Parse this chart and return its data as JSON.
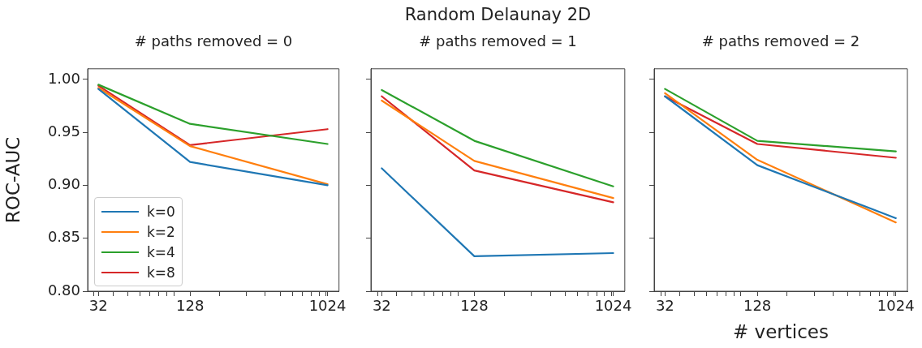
{
  "chart_data": [
    {
      "type": "line",
      "subtitle": "# paths removed = 0",
      "ylabel": "ROC-AUC",
      "x": [
        32,
        128,
        1024
      ],
      "log": "x",
      "legend": "bottom left",
      "grid": false,
      "xlim": [
        27.2,
        1218
      ],
      "xticks": [
        {
          "value": 30,
          "label": null
        },
        {
          "value": 32,
          "label": "32"
        },
        {
          "value": 40,
          "label": null
        },
        {
          "value": 50,
          "label": null
        },
        {
          "value": 60,
          "label": null
        },
        {
          "value": 70,
          "label": null
        },
        {
          "value": 80,
          "label": null
        },
        {
          "value": 90,
          "label": null
        },
        {
          "value": 100,
          "label": null
        },
        {
          "value": 128,
          "label": "128"
        },
        {
          "value": 200,
          "label": null
        },
        {
          "value": 300,
          "label": null
        },
        {
          "value": 400,
          "label": null
        },
        {
          "value": 500,
          "label": null
        },
        {
          "value": 600,
          "label": null
        },
        {
          "value": 700,
          "label": null
        },
        {
          "value": 800,
          "label": null
        },
        {
          "value": 900,
          "label": null
        },
        {
          "value": 1000,
          "label": null
        },
        {
          "value": 1024,
          "label": "1024"
        }
      ],
      "ylim": [
        0.8,
        1.01
      ],
      "yticks": [
        {
          "value": 0.8,
          "label": "0.80"
        },
        {
          "value": 0.85,
          "label": "0.85"
        },
        {
          "value": 0.9,
          "label": "0.90"
        },
        {
          "value": 0.95,
          "label": "0.95"
        },
        {
          "value": 1,
          "label": "1.00"
        }
      ],
      "series": [
        {
          "name": "k=0",
          "color": "#1f77b4",
          "values": [
            0.991,
            0.922,
            0.9
          ]
        },
        {
          "name": "k=2",
          "color": "#ff7f0e",
          "values": [
            0.992,
            0.937,
            0.901
          ]
        },
        {
          "name": "k=4",
          "color": "#2ca02c",
          "values": [
            0.995,
            0.958,
            0.939
          ]
        },
        {
          "name": "k=8",
          "color": "#d62728",
          "values": [
            0.994,
            0.938,
            0.953
          ]
        }
      ]
    },
    {
      "type": "line",
      "title": "Random Delaunay 2D",
      "subtitle": "# paths removed = 1",
      "x": [
        32,
        128,
        1024
      ],
      "log": "x",
      "grid": false,
      "tick_labels": "x",
      "xlim": [
        27.2,
        1218
      ],
      "xticks": [
        {
          "value": 30,
          "label": null
        },
        {
          "value": 32,
          "label": "32"
        },
        {
          "value": 40,
          "label": null
        },
        {
          "value": 50,
          "label": null
        },
        {
          "value": 60,
          "label": null
        },
        {
          "value": 70,
          "label": null
        },
        {
          "value": 80,
          "label": null
        },
        {
          "value": 90,
          "label": null
        },
        {
          "value": 100,
          "label": null
        },
        {
          "value": 128,
          "label": "128"
        },
        {
          "value": 200,
          "label": null
        },
        {
          "value": 300,
          "label": null
        },
        {
          "value": 400,
          "label": null
        },
        {
          "value": 500,
          "label": null
        },
        {
          "value": 600,
          "label": null
        },
        {
          "value": 700,
          "label": null
        },
        {
          "value": 800,
          "label": null
        },
        {
          "value": 900,
          "label": null
        },
        {
          "value": 1000,
          "label": null
        },
        {
          "value": 1024,
          "label": "1024"
        }
      ],
      "ylim": [
        0.8,
        1.01
      ],
      "yticks": [
        {
          "value": 0.8,
          "label": null
        },
        {
          "value": 0.85,
          "label": null
        },
        {
          "value": 0.9,
          "label": null
        },
        {
          "value": 0.95,
          "label": null
        },
        {
          "value": 1,
          "label": null
        }
      ],
      "series": [
        {
          "color": "#1f77b4",
          "values": [
            0.916,
            0.833,
            0.836
          ]
        },
        {
          "color": "#ff7f0e",
          "values": [
            0.98,
            0.923,
            0.888
          ]
        },
        {
          "color": "#2ca02c",
          "values": [
            0.99,
            0.942,
            0.899
          ]
        },
        {
          "color": "#d62728",
          "values": [
            0.984,
            0.914,
            0.884
          ]
        }
      ]
    },
    {
      "type": "line",
      "subtitle": "# paths removed = 2",
      "xlabel": "# vertices",
      "x": [
        32,
        128,
        1024
      ],
      "log": "x",
      "grid": false,
      "tick_labels": "x",
      "xlim": [
        27.2,
        1218
      ],
      "xticks": [
        {
          "value": 30,
          "label": null
        },
        {
          "value": 32,
          "label": "32"
        },
        {
          "value": 40,
          "label": null
        },
        {
          "value": 50,
          "label": null
        },
        {
          "value": 60,
          "label": null
        },
        {
          "value": 70,
          "label": null
        },
        {
          "value": 80,
          "label": null
        },
        {
          "value": 90,
          "label": null
        },
        {
          "value": 100,
          "label": null
        },
        {
          "value": 128,
          "label": "128"
        },
        {
          "value": 200,
          "label": null
        },
        {
          "value": 300,
          "label": null
        },
        {
          "value": 400,
          "label": null
        },
        {
          "value": 500,
          "label": null
        },
        {
          "value": 600,
          "label": null
        },
        {
          "value": 700,
          "label": null
        },
        {
          "value": 800,
          "label": null
        },
        {
          "value": 900,
          "label": null
        },
        {
          "value": 1000,
          "label": null
        },
        {
          "value": 1024,
          "label": "1024"
        }
      ],
      "ylim": [
        0.8,
        1.01
      ],
      "yticks": [
        {
          "value": 0.8,
          "label": null
        },
        {
          "value": 0.85,
          "label": null
        },
        {
          "value": 0.9,
          "label": null
        },
        {
          "value": 0.95,
          "label": null
        },
        {
          "value": 1,
          "label": null
        }
      ],
      "series": [
        {
          "color": "#1f77b4",
          "values": [
            0.984,
            0.919,
            0.869
          ]
        },
        {
          "color": "#ff7f0e",
          "values": [
            0.987,
            0.924,
            0.865
          ]
        },
        {
          "color": "#2ca02c",
          "values": [
            0.991,
            0.942,
            0.932
          ]
        },
        {
          "color": "#d62728",
          "values": [
            0.984,
            0.939,
            0.926
          ]
        }
      ]
    }
  ]
}
